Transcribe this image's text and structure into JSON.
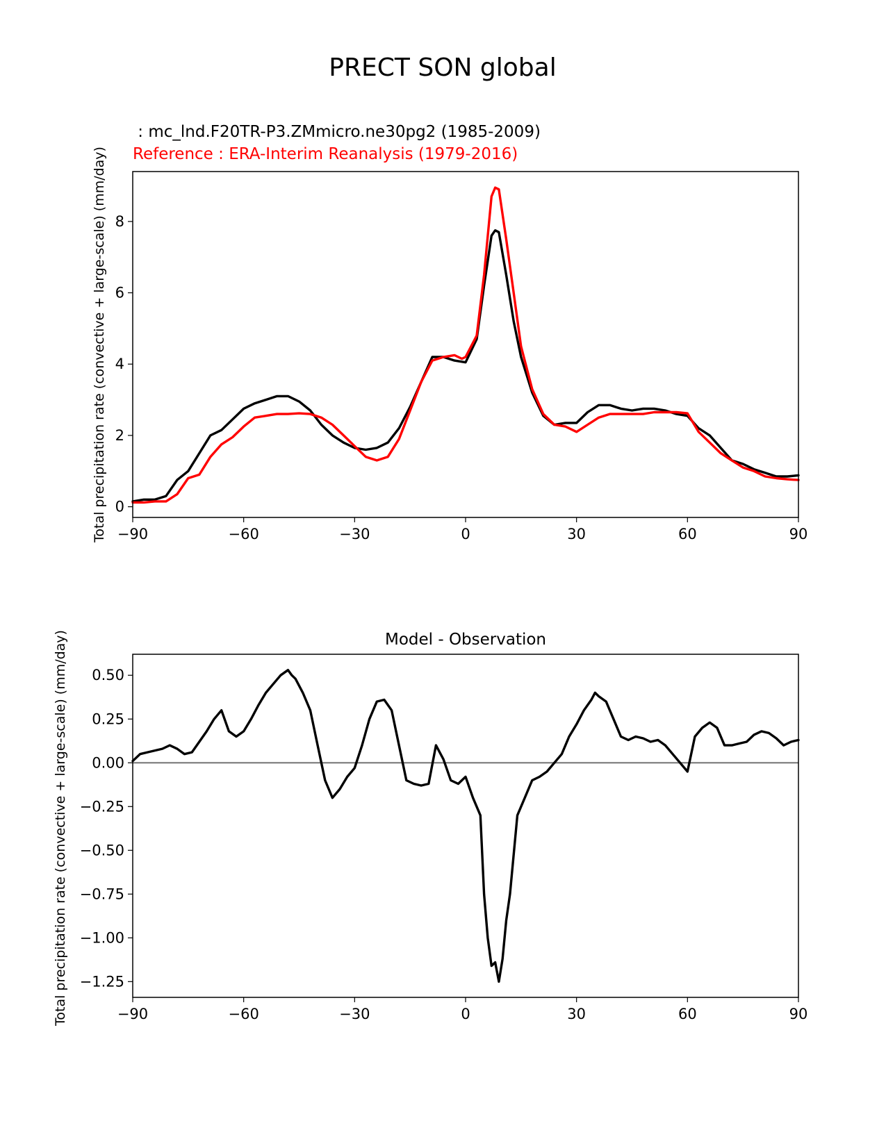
{
  "figure": {
    "title": "PRECT SON global"
  },
  "chart_data": [
    {
      "type": "line",
      "panel": "top",
      "test_label": " : mc_lnd.F20TR-P3.ZMmicro.ne30pg2 (1985-2009)",
      "ref_label": "Reference : ERA-Interim Reanalysis (1979-2016)",
      "xlabel": "",
      "ylabel": "Total precipitation rate (convective + large-scale) (mm/day)",
      "xlim": [
        -90,
        90
      ],
      "ylim": [
        -0.3,
        9.4
      ],
      "xticks": [
        -90,
        -60,
        -30,
        0,
        30,
        60,
        90
      ],
      "xtick_labels": [
        "−90",
        "−60",
        "−30",
        "0",
        "30",
        "60",
        "90"
      ],
      "yticks": [
        0,
        2,
        4,
        6,
        8
      ],
      "ytick_labels": [
        "0",
        "2",
        "4",
        "6",
        "8"
      ],
      "series": [
        {
          "name": "test",
          "color": "#000000",
          "x": [
            -90,
            -87,
            -84,
            -81,
            -78,
            -75,
            -72,
            -69,
            -66,
            -63,
            -60,
            -57,
            -54,
            -51,
            -48,
            -45,
            -42,
            -39,
            -36,
            -33,
            -30,
            -27,
            -24,
            -21,
            -18,
            -15,
            -12,
            -9,
            -6,
            -3,
            0,
            3,
            5,
            7,
            8,
            9,
            11,
            13,
            15,
            18,
            21,
            24,
            27,
            30,
            33,
            36,
            39,
            42,
            45,
            48,
            51,
            54,
            57,
            60,
            63,
            66,
            69,
            72,
            75,
            78,
            81,
            84,
            87,
            90
          ],
          "y": [
            0.15,
            0.2,
            0.2,
            0.3,
            0.75,
            1.0,
            1.5,
            2.0,
            2.15,
            2.45,
            2.75,
            2.9,
            3.0,
            3.1,
            3.1,
            2.95,
            2.7,
            2.3,
            2.0,
            1.8,
            1.65,
            1.6,
            1.65,
            1.8,
            2.2,
            2.8,
            3.5,
            4.2,
            4.2,
            4.1,
            4.05,
            4.7,
            6.2,
            7.6,
            7.75,
            7.7,
            6.5,
            5.2,
            4.2,
            3.2,
            2.55,
            2.3,
            2.35,
            2.35,
            2.65,
            2.85,
            2.85,
            2.75,
            2.7,
            2.75,
            2.75,
            2.7,
            2.6,
            2.55,
            2.2,
            2.0,
            1.65,
            1.3,
            1.2,
            1.05,
            0.95,
            0.85,
            0.85,
            0.88
          ]
        },
        {
          "name": "reference",
          "color": "#ff0000",
          "x": [
            -90,
            -87,
            -84,
            -81,
            -78,
            -75,
            -72,
            -69,
            -66,
            -63,
            -60,
            -57,
            -54,
            -51,
            -48,
            -45,
            -42,
            -39,
            -36,
            -33,
            -30,
            -27,
            -24,
            -21,
            -18,
            -15,
            -12,
            -9,
            -6,
            -3,
            -1,
            0,
            3,
            5,
            7,
            8,
            9,
            11,
            13,
            15,
            18,
            21,
            24,
            27,
            30,
            33,
            36,
            39,
            42,
            45,
            48,
            51,
            54,
            57,
            60,
            63,
            66,
            69,
            72,
            75,
            78,
            81,
            84,
            87,
            90
          ],
          "y": [
            0.12,
            0.12,
            0.15,
            0.15,
            0.35,
            0.8,
            0.9,
            1.4,
            1.75,
            1.95,
            2.25,
            2.5,
            2.55,
            2.6,
            2.6,
            2.62,
            2.6,
            2.5,
            2.3,
            2.0,
            1.7,
            1.4,
            1.3,
            1.4,
            1.9,
            2.7,
            3.5,
            4.1,
            4.2,
            4.25,
            4.15,
            4.2,
            4.8,
            6.5,
            8.7,
            8.95,
            8.9,
            7.5,
            6.0,
            4.5,
            3.3,
            2.6,
            2.3,
            2.25,
            2.1,
            2.3,
            2.5,
            2.6,
            2.6,
            2.6,
            2.6,
            2.65,
            2.65,
            2.65,
            2.62,
            2.1,
            1.8,
            1.5,
            1.3,
            1.1,
            1.0,
            0.85,
            0.8,
            0.77,
            0.75
          ]
        }
      ]
    },
    {
      "type": "line",
      "panel": "bottom",
      "title": "Model - Observation",
      "xlabel": "",
      "ylabel": "Total precipitation rate (convective + large-scale) (mm/day)",
      "xlim": [
        -90,
        90
      ],
      "ylim": [
        -1.34,
        0.62
      ],
      "xticks": [
        -90,
        -60,
        -30,
        0,
        30,
        60,
        90
      ],
      "xtick_labels": [
        "−90",
        "−60",
        "−30",
        "0",
        "30",
        "60",
        "90"
      ],
      "yticks": [
        0.5,
        0.25,
        0.0,
        -0.25,
        -0.5,
        -0.75,
        -1.0,
        -1.25
      ],
      "ytick_labels": [
        "0.50",
        "0.25",
        "0.00",
        "−0.25",
        "−0.50",
        "−0.75",
        "−1.00",
        "−1.25"
      ],
      "zero_line": {
        "y": 0,
        "color": "#808080"
      },
      "series": [
        {
          "name": "difference",
          "color": "#000000",
          "x": [
            -90,
            -88,
            -86,
            -84,
            -82,
            -80,
            -78,
            -76,
            -74,
            -72,
            -70,
            -68,
            -66,
            -64,
            -62,
            -60,
            -58,
            -56,
            -54,
            -52,
            -50,
            -48,
            -47,
            -46,
            -44,
            -42,
            -40,
            -38,
            -36,
            -34,
            -32,
            -30,
            -28,
            -26,
            -24,
            -22,
            -20,
            -18,
            -16,
            -14,
            -12,
            -10,
            -8,
            -6,
            -4,
            -2,
            0,
            2,
            4,
            5,
            6,
            7,
            8,
            9,
            10,
            11,
            12,
            14,
            16,
            18,
            20,
            22,
            24,
            26,
            28,
            30,
            32,
            34,
            35,
            36,
            38,
            40,
            42,
            44,
            46,
            48,
            50,
            52,
            54,
            56,
            58,
            60,
            62,
            64,
            66,
            68,
            70,
            72,
            74,
            76,
            78,
            80,
            82,
            84,
            86,
            88,
            90
          ],
          "y": [
            0.01,
            0.05,
            0.06,
            0.07,
            0.08,
            0.1,
            0.08,
            0.05,
            0.06,
            0.12,
            0.18,
            0.25,
            0.3,
            0.18,
            0.15,
            0.18,
            0.25,
            0.33,
            0.4,
            0.45,
            0.5,
            0.53,
            0.5,
            0.48,
            0.4,
            0.3,
            0.1,
            -0.1,
            -0.2,
            -0.15,
            -0.08,
            -0.03,
            0.1,
            0.25,
            0.35,
            0.36,
            0.3,
            0.1,
            -0.1,
            -0.12,
            -0.13,
            -0.12,
            0.1,
            0.02,
            -0.1,
            -0.12,
            -0.08,
            -0.2,
            -0.3,
            -0.75,
            -1.0,
            -1.16,
            -1.14,
            -1.25,
            -1.12,
            -0.9,
            -0.75,
            -0.3,
            -0.2,
            -0.1,
            -0.08,
            -0.05,
            0.0,
            0.05,
            0.15,
            0.22,
            0.3,
            0.36,
            0.4,
            0.38,
            0.35,
            0.25,
            0.15,
            0.13,
            0.15,
            0.14,
            0.12,
            0.13,
            0.1,
            0.05,
            0.0,
            -0.05,
            0.15,
            0.2,
            0.23,
            0.2,
            0.1,
            0.1,
            0.11,
            0.12,
            0.16,
            0.18,
            0.17,
            0.14,
            0.1,
            0.12,
            0.13
          ]
        }
      ]
    }
  ]
}
